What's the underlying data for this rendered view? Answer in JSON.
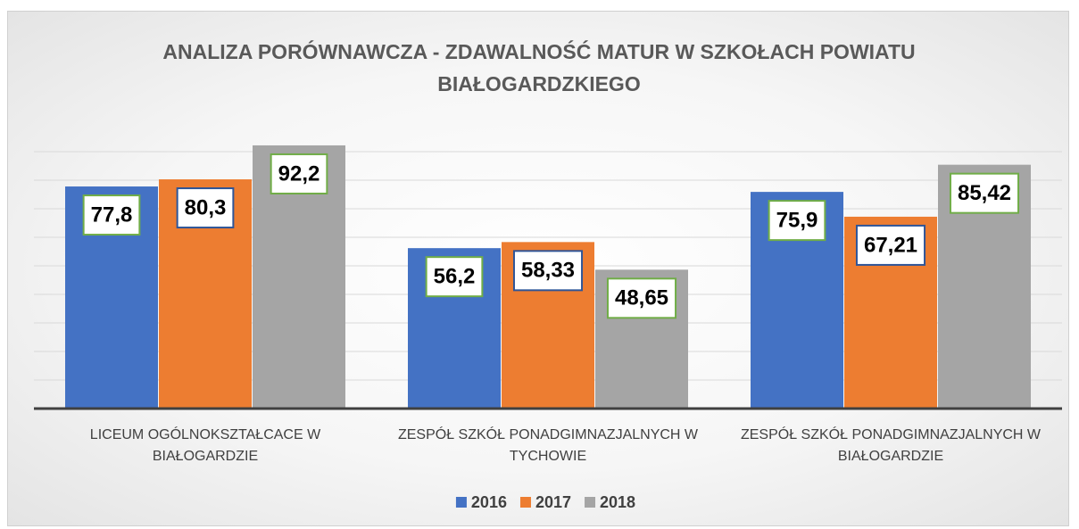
{
  "chart_data": {
    "type": "bar",
    "title": "ANALIZA PORÓWNAWCZA - ZDAWALNOŚĆ MATUR W SZKOŁACH POWIATU BIAŁOGARDZKIEGO",
    "categories": [
      "LICEUM OGÓLNOKSZTAŁCACE W BIAŁOGARDZIE",
      "ZESPÓŁ SZKÓŁ PONADGIMNAZJALNYCH W TYCHOWIE",
      "ZESPÓŁ SZKÓŁ PONADGIMNAZJALNYCH W BIAŁOGARDZIE"
    ],
    "series": [
      {
        "name": "2016",
        "color": "#4472c4",
        "values": [
          77.8,
          56.2,
          75.9
        ],
        "value_labels": [
          "77,8",
          "56,2",
          "75,9"
        ]
      },
      {
        "name": "2017",
        "color": "#ed7d31",
        "values": [
          80.3,
          58.33,
          67.21
        ],
        "value_labels": [
          "80,3",
          "58,33",
          "67,21"
        ]
      },
      {
        "name": "2018",
        "color": "#a5a5a5",
        "values": [
          92.2,
          48.65,
          85.42
        ],
        "value_labels": [
          "92,2",
          "48,65",
          "85,42"
        ]
      }
    ],
    "ylim": [
      0,
      100
    ],
    "yticks": [
      0,
      10,
      20,
      30,
      40,
      50,
      60,
      70,
      80,
      90
    ],
    "grid": true,
    "legend": "bottom"
  }
}
